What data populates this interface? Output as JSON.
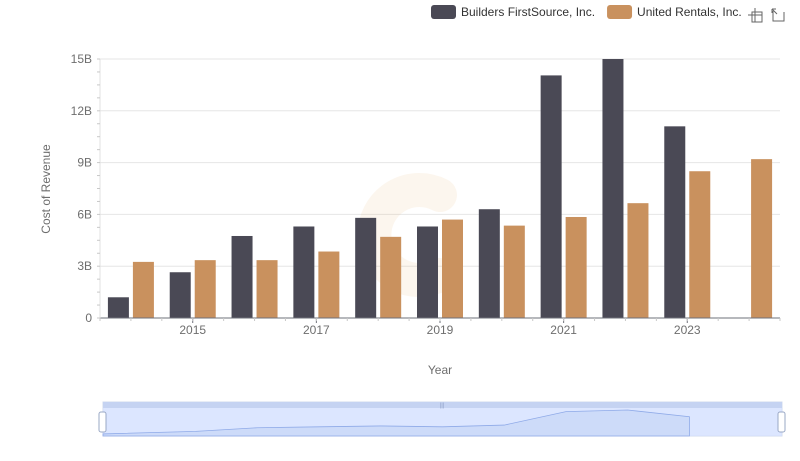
{
  "chart_data": {
    "type": "bar",
    "title": "",
    "xlabel": "Year",
    "ylabel": "Cost of Revenue",
    "categories": [
      "2014",
      "2015",
      "2016",
      "2017",
      "2018",
      "2019",
      "2020",
      "2021",
      "2022",
      "2023",
      "2024"
    ],
    "x_tick_labels": [
      "2015",
      "2017",
      "2019",
      "2021",
      "2023"
    ],
    "y_tick_values": [
      0,
      3,
      6,
      9,
      12,
      15
    ],
    "y_tick_labels": [
      "0",
      "3B",
      "6B",
      "9B",
      "12B",
      "15B"
    ],
    "ylim": [
      0,
      15
    ],
    "unit": "B",
    "series": [
      {
        "name": "Builders FirstSource, Inc.",
        "color": "#4a4955",
        "values": [
          1.2,
          2.65,
          4.75,
          5.3,
          5.8,
          5.3,
          6.3,
          14.05,
          15.0,
          11.1,
          null
        ]
      },
      {
        "name": "United Rentals, Inc.",
        "color": "#c9915e",
        "values": [
          3.25,
          3.35,
          3.35,
          3.85,
          4.7,
          5.7,
          5.35,
          5.85,
          6.65,
          8.5,
          9.2
        ]
      }
    ],
    "legend_position": "top-right",
    "grid": true
  },
  "toolbar": {
    "zoom_icon": "crosshair-zoom-icon",
    "restore_icon": "restore-icon"
  },
  "data_zoom": {
    "handle_label": "|||"
  }
}
